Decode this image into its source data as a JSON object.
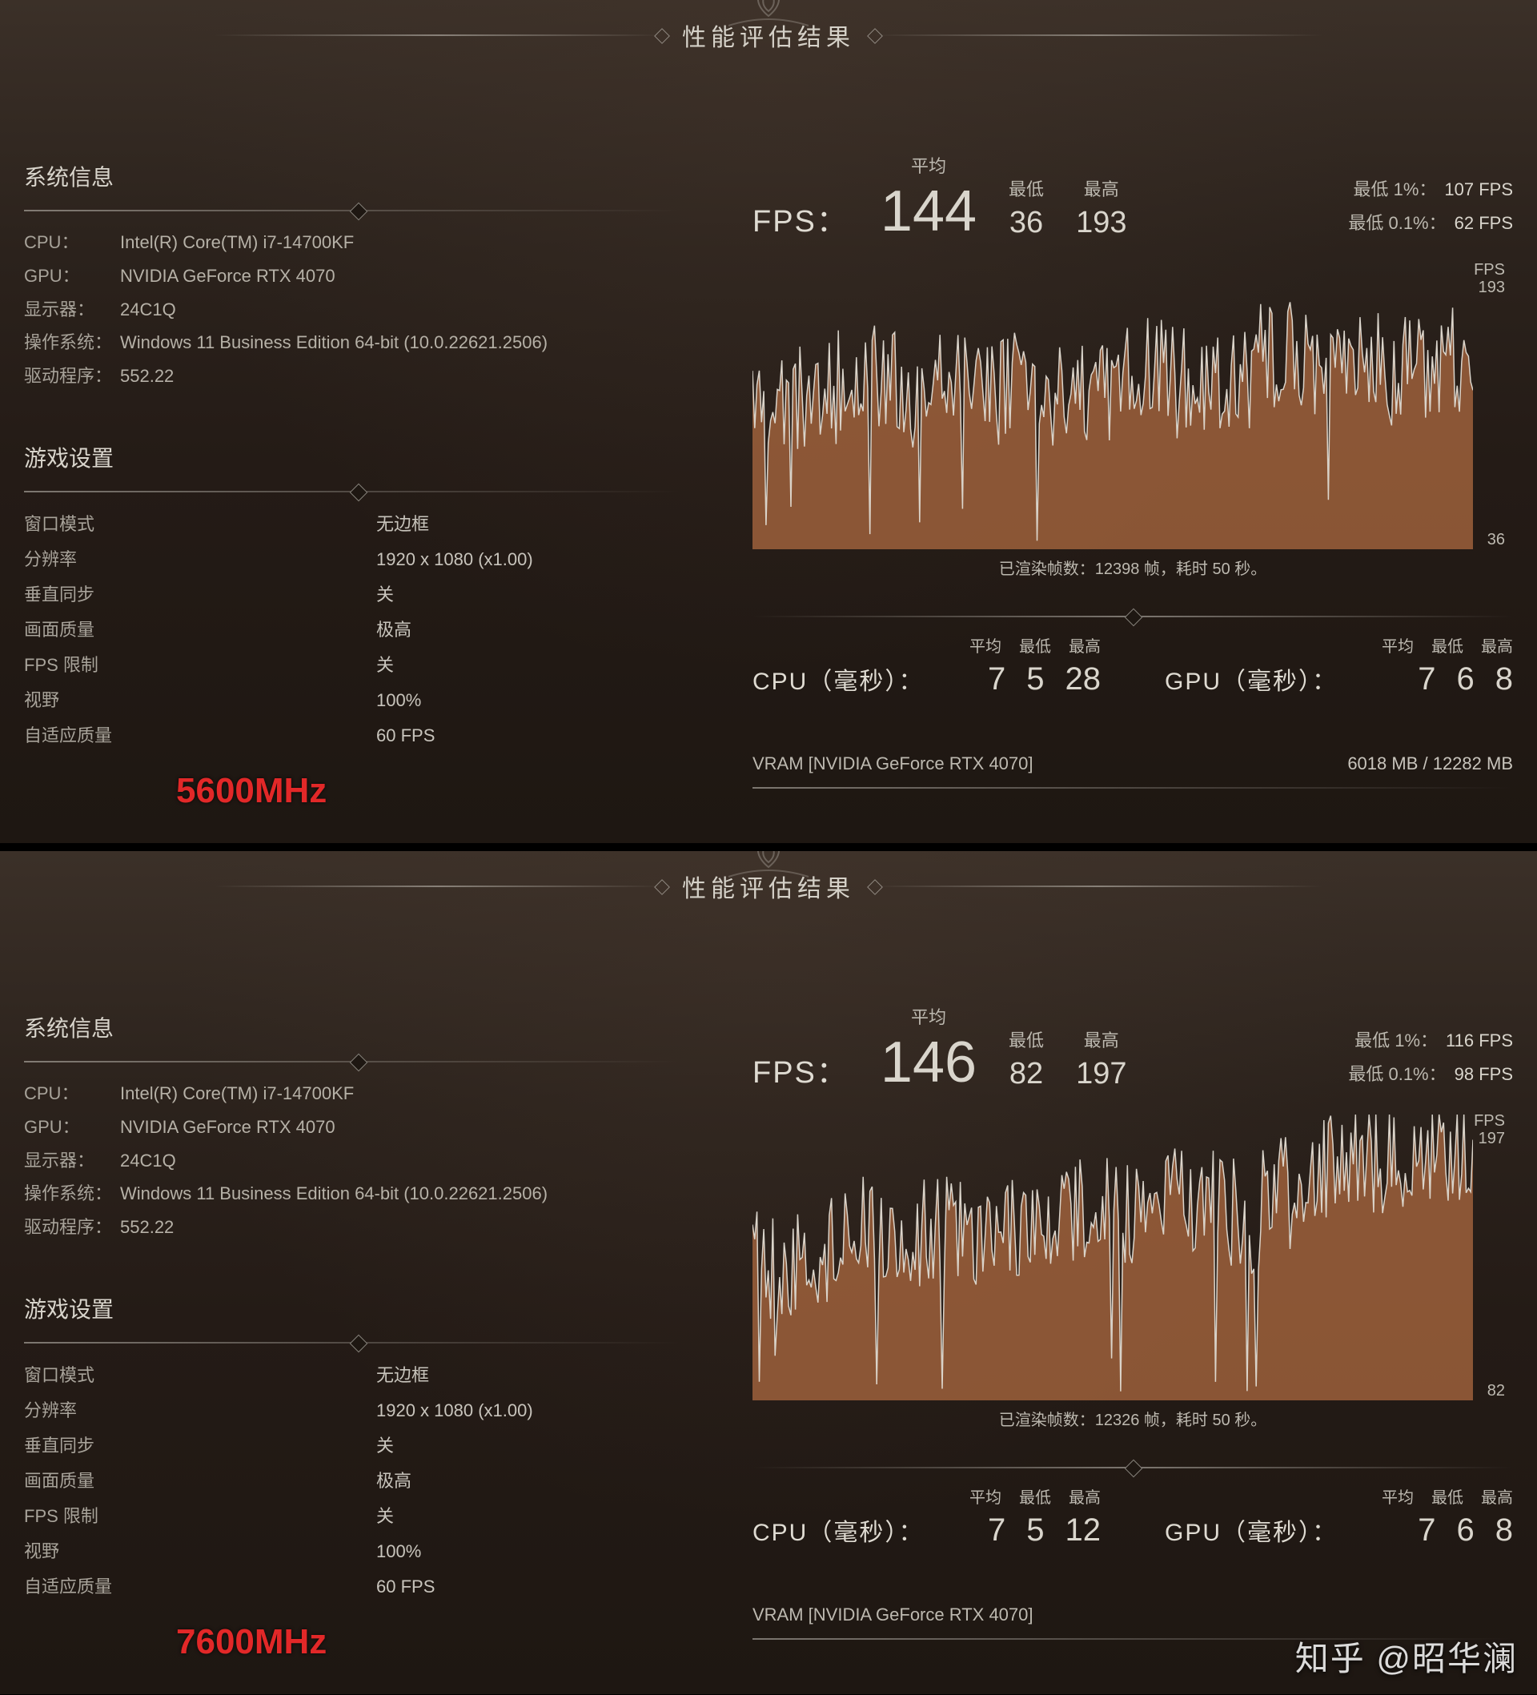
{
  "header_title": "性能评估结果",
  "watermark": "知乎 @昭华澜",
  "colors": {
    "text": "#c8c4bc",
    "text_dim": "#a8a39a",
    "accent": "#e22828",
    "graph_fill": "#a8663f",
    "graph_stroke": "#e8e4db",
    "bg_top": "#3b3028",
    "bg_bottom": "#1e1712"
  },
  "panels": [
    {
      "speed_label": "5600MHz",
      "sys_title": "系统信息",
      "sys": {
        "cpu_label": "CPU：",
        "cpu": "Intel(R) Core(TM) i7-14700KF",
        "gpu_label": "GPU：",
        "gpu": "NVIDIA GeForce RTX 4070",
        "monitor_label": "显示器：",
        "monitor": "24C1Q",
        "os_label": "操作系统：",
        "os": "Windows 11 Business Edition 64-bit (10.0.22621.2506)",
        "driver_label": "驱动程序：",
        "driver": "552.22"
      },
      "settings_title": "游戏设置",
      "settings": [
        {
          "k": "窗口模式",
          "v": "无边框"
        },
        {
          "k": "分辨率",
          "v": "1920 x 1080  (x1.00)"
        },
        {
          "k": "垂直同步",
          "v": "关"
        },
        {
          "k": "画面质量",
          "v": "极高"
        },
        {
          "k": "FPS 限制",
          "v": "关"
        },
        {
          "k": "视野",
          "v": "100%"
        },
        {
          "k": "自适应质量",
          "v": "60 FPS"
        }
      ],
      "fps": {
        "label": "FPS：",
        "avg_label": "平均",
        "avg": "144",
        "min_label": "最低",
        "min": "36",
        "max_label": "最高",
        "max": "193",
        "low1_label": "最低 1%：",
        "low1": "107 FPS",
        "low01_label": "最低 0.1%：",
        "low01": "62 FPS"
      },
      "graph": {
        "y_unit": "FPS",
        "y_max": "193",
        "y_min": "36",
        "min": 36,
        "max": 193,
        "points": 320,
        "seed": 5600,
        "caption_prefix": "已渲染帧数：",
        "frames": "12398 帧，",
        "time": "耗时 50 秒。"
      },
      "ms": {
        "avg_label": "平均",
        "min_label": "最低",
        "max_label": "最高",
        "cpu_label": "CPU（毫秒）：",
        "cpu_avg": "7",
        "cpu_min": "5",
        "cpu_max": "28",
        "gpu_label": "GPU（毫秒）：",
        "gpu_avg": "7",
        "gpu_min": "6",
        "gpu_max": "8"
      },
      "vram": {
        "label": "VRAM [NVIDIA GeForce RTX 4070]",
        "value": "6018 MB / 12282 MB"
      }
    },
    {
      "speed_label": "7600MHz",
      "sys_title": "系统信息",
      "sys": {
        "cpu_label": "CPU：",
        "cpu": "Intel(R) Core(TM) i7-14700KF",
        "gpu_label": "GPU：",
        "gpu": "NVIDIA GeForce RTX 4070",
        "monitor_label": "显示器：",
        "monitor": "24C1Q",
        "os_label": "操作系统：",
        "os": "Windows 11 Business Edition 64-bit (10.0.22621.2506)",
        "driver_label": "驱动程序：",
        "driver": "552.22"
      },
      "settings_title": "游戏设置",
      "settings": [
        {
          "k": "窗口模式",
          "v": "无边框"
        },
        {
          "k": "分辨率",
          "v": "1920 x 1080  (x1.00)"
        },
        {
          "k": "垂直同步",
          "v": "关"
        },
        {
          "k": "画面质量",
          "v": "极高"
        },
        {
          "k": "FPS 限制",
          "v": "关"
        },
        {
          "k": "视野",
          "v": "100%"
        },
        {
          "k": "自适应质量",
          "v": "60 FPS"
        }
      ],
      "fps": {
        "label": "FPS：",
        "avg_label": "平均",
        "avg": "146",
        "min_label": "最低",
        "min": "82",
        "max_label": "最高",
        "max": "197",
        "low1_label": "最低 1%：",
        "low1": "116 FPS",
        "low01_label": "最低 0.1%：",
        "low01": "98 FPS"
      },
      "graph": {
        "y_unit": "FPS",
        "y_max": "197",
        "y_min": "82",
        "min": 82,
        "max": 197,
        "points": 320,
        "seed": 7600,
        "caption_prefix": "已渲染帧数：",
        "frames": "12326 帧，",
        "time": "耗时 50 秒。"
      },
      "ms": {
        "avg_label": "平均",
        "min_label": "最低",
        "max_label": "最高",
        "cpu_label": "CPU（毫秒）：",
        "cpu_avg": "7",
        "cpu_min": "5",
        "cpu_max": "12",
        "gpu_label": "GPU（毫秒）：",
        "gpu_avg": "7",
        "gpu_min": "6",
        "gpu_max": "8"
      },
      "vram": {
        "label": "VRAM [NVIDIA GeForce RTX 4070]",
        "value": ""
      }
    }
  ]
}
